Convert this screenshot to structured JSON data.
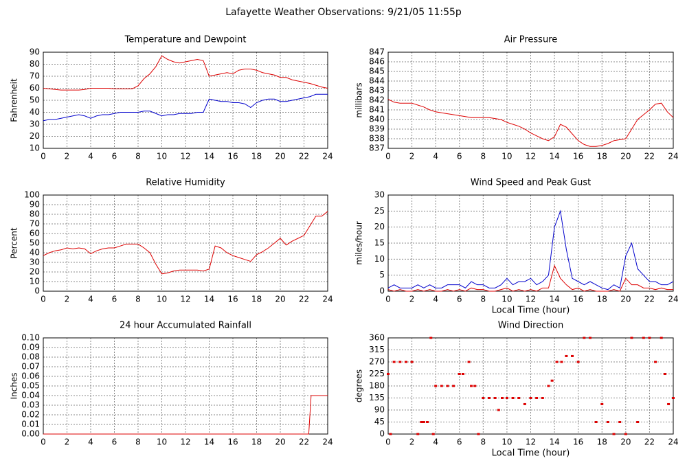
{
  "title": "Lafayette Weather Observations: 9/21/05 11:55p",
  "chart_data": [
    {
      "type": "line",
      "title": "Temperature and Dewpoint",
      "ylabel": "Fahrenheit",
      "grid": true,
      "xlim": [
        0,
        24
      ],
      "xticks": [
        0,
        2,
        4,
        6,
        8,
        10,
        12,
        14,
        16,
        18,
        20,
        22,
        24
      ],
      "ylim": [
        10,
        90
      ],
      "yticks": [
        10,
        20,
        30,
        40,
        50,
        60,
        70,
        80,
        90
      ],
      "x": [
        0,
        0.5,
        1,
        1.5,
        2,
        2.5,
        3,
        3.5,
        4,
        4.5,
        5,
        5.5,
        6,
        6.5,
        7,
        7.5,
        8,
        8.5,
        9,
        9.5,
        10,
        10.5,
        11,
        11.5,
        12,
        12.5,
        13,
        13.5,
        14,
        14.5,
        15,
        15.5,
        16,
        16.5,
        17,
        17.5,
        18,
        18.5,
        19,
        19.5,
        20,
        20.5,
        21,
        21.5,
        22,
        22.5,
        23,
        23.5,
        24
      ],
      "series": [
        {
          "color": "#dd0000",
          "values": [
            60,
            59.5,
            59,
            58.5,
            58.5,
            58.5,
            58.5,
            59,
            60,
            60,
            60,
            60,
            59.5,
            59.5,
            59.5,
            59.5,
            62,
            68,
            72,
            78,
            87,
            84,
            82,
            81,
            82,
            83,
            84,
            83,
            70,
            71,
            72,
            73,
            72,
            75,
            76,
            76,
            75,
            73,
            72,
            71,
            69,
            69,
            67,
            66,
            65,
            64,
            62.5,
            61,
            60
          ]
        },
        {
          "color": "#0000cc",
          "values": [
            33,
            34,
            34,
            35,
            36,
            37,
            38,
            37,
            35,
            37,
            38,
            38,
            39,
            40,
            40,
            40,
            40,
            41,
            41,
            39,
            37,
            38,
            38,
            39,
            39,
            39,
            40,
            40,
            51,
            50,
            49,
            49,
            48,
            48,
            47,
            44,
            48,
            50,
            51,
            51,
            49,
            49,
            50,
            51,
            52,
            53,
            55,
            55,
            55
          ]
        }
      ]
    },
    {
      "type": "line",
      "title": "Air Pressure",
      "ylabel": "millibars",
      "grid": true,
      "xlim": [
        0,
        24
      ],
      "xticks": [
        0,
        2,
        4,
        6,
        8,
        10,
        12,
        14,
        16,
        18,
        20,
        22,
        24
      ],
      "ylim": [
        837,
        847
      ],
      "yticks": [
        837,
        838,
        839,
        840,
        841,
        842,
        843,
        844,
        845,
        846,
        847
      ],
      "x": [
        0,
        0.5,
        1,
        1.5,
        2,
        2.5,
        3,
        3.5,
        4,
        4.5,
        5,
        5.5,
        6,
        6.5,
        7,
        7.5,
        8,
        8.5,
        9,
        9.5,
        10,
        10.5,
        11,
        11.5,
        12,
        12.5,
        13,
        13.5,
        14,
        14.5,
        15,
        15.5,
        16,
        16.5,
        17,
        17.5,
        18,
        18.5,
        19,
        19.5,
        20,
        20.5,
        21,
        21.5,
        22,
        22.5,
        23,
        23.5,
        24
      ],
      "series": [
        {
          "color": "#dd0000",
          "values": [
            842.1,
            841.8,
            841.7,
            841.7,
            841.7,
            841.5,
            841.3,
            841.0,
            840.8,
            840.7,
            840.6,
            840.5,
            840.4,
            840.3,
            840.2,
            840.2,
            840.2,
            840.2,
            840.1,
            840.0,
            839.7,
            839.5,
            839.3,
            839.0,
            838.6,
            838.3,
            838.0,
            837.8,
            838.2,
            839.5,
            839.2,
            838.5,
            837.8,
            837.4,
            837.2,
            837.2,
            837.3,
            837.5,
            837.8,
            837.9,
            838.0,
            839.0,
            840.0,
            840.5,
            841.0,
            841.6,
            841.7,
            840.8,
            840.2
          ]
        }
      ]
    },
    {
      "type": "line",
      "title": "Relative Humidity",
      "ylabel": "Percent",
      "grid": true,
      "xlim": [
        0,
        24
      ],
      "xticks": [
        0,
        2,
        4,
        6,
        8,
        10,
        12,
        14,
        16,
        18,
        20,
        22,
        24
      ],
      "ylim": [
        0,
        100
      ],
      "yticks": [
        0,
        10,
        20,
        30,
        40,
        50,
        60,
        70,
        80,
        90,
        100
      ],
      "x": [
        0,
        0.5,
        1,
        1.5,
        2,
        2.5,
        3,
        3.5,
        4,
        4.5,
        5,
        5.5,
        6,
        6.5,
        7,
        7.5,
        8,
        8.5,
        9,
        9.5,
        10,
        10.5,
        11,
        11.5,
        12,
        12.5,
        13,
        13.5,
        14,
        14.5,
        15,
        15.5,
        16,
        16.5,
        17,
        17.5,
        18,
        18.5,
        19,
        19.5,
        20,
        20.5,
        21,
        21.5,
        22,
        22.5,
        23,
        23.5,
        24
      ],
      "series": [
        {
          "color": "#dd0000",
          "values": [
            37,
            40,
            42,
            43,
            45,
            44,
            45,
            44,
            39,
            42,
            44,
            45,
            45,
            47,
            49,
            49,
            49,
            45,
            40,
            28,
            18,
            19,
            21,
            22,
            22,
            22,
            22,
            21,
            23,
            47,
            45,
            40,
            37,
            35,
            33,
            31,
            38,
            41,
            45,
            50,
            55,
            48,
            52,
            55,
            58,
            68,
            78,
            78,
            83
          ]
        }
      ]
    },
    {
      "type": "line",
      "title": "Wind Speed and Peak Gust",
      "ylabel": "miles/hour",
      "xlabel": "Local Time (hour)",
      "grid": true,
      "xlim": [
        0,
        24
      ],
      "xticks": [
        0,
        2,
        4,
        6,
        8,
        10,
        12,
        14,
        16,
        18,
        20,
        22,
        24
      ],
      "ylim": [
        0,
        30
      ],
      "yticks": [
        0,
        5,
        10,
        15,
        20,
        25,
        30
      ],
      "x": [
        0,
        0.5,
        1,
        1.5,
        2,
        2.5,
        3,
        3.5,
        4,
        4.5,
        5,
        5.5,
        6,
        6.5,
        7,
        7.5,
        8,
        8.5,
        9,
        9.5,
        10,
        10.5,
        11,
        11.5,
        12,
        12.5,
        13,
        13.5,
        14,
        14.5,
        15,
        15.5,
        16,
        16.5,
        17,
        17.5,
        18,
        18.5,
        19,
        19.5,
        20,
        20.5,
        21,
        21.5,
        22,
        22.5,
        23,
        23.5,
        24
      ],
      "series": [
        {
          "color": "#0000cc",
          "values": [
            1,
            2,
            1,
            1,
            1,
            2,
            1,
            2,
            1,
            1,
            2,
            2,
            2,
            1,
            3,
            2,
            2,
            1,
            1,
            2,
            4,
            2,
            3,
            3,
            4,
            2,
            3,
            5,
            20,
            25,
            13,
            4,
            3,
            2,
            3,
            2,
            1,
            0.5,
            2,
            1,
            11,
            15,
            7,
            5,
            3,
            3,
            2,
            2,
            3
          ]
        },
        {
          "color": "#dd0000",
          "values": [
            0.5,
            0,
            0.5,
            0,
            0,
            0.5,
            0,
            0.5,
            0,
            0,
            0.5,
            0,
            0.5,
            0,
            1,
            0.5,
            0.5,
            0,
            0,
            0.5,
            1,
            0,
            0.5,
            0,
            0.5,
            0,
            1,
            1,
            8,
            4,
            2,
            0.5,
            1,
            0,
            0.5,
            0,
            0,
            0,
            0.5,
            0,
            4,
            2,
            2,
            1,
            1,
            0.5,
            1,
            0.5,
            0.5
          ]
        }
      ]
    },
    {
      "type": "line",
      "title": "24 hour Accumulated Rainfall",
      "ylabel": "Inches",
      "grid": true,
      "xlim": [
        0,
        24
      ],
      "xticks": [
        0,
        2,
        4,
        6,
        8,
        10,
        12,
        14,
        16,
        18,
        20,
        22,
        24
      ],
      "ylim": [
        0,
        0.1
      ],
      "yticks": [
        {
          "value": 0,
          "label": "0.00"
        },
        0.01,
        0.02,
        0.03,
        0.04,
        0.05,
        0.06,
        0.07,
        0.08,
        0.09,
        {
          "value": 0.1,
          "label": "0.10"
        }
      ],
      "x": [
        0,
        22.4,
        22.6,
        24
      ],
      "series": [
        {
          "color": "#dd0000",
          "values": [
            0,
            0,
            0.04,
            0.04
          ]
        }
      ]
    },
    {
      "type": "scatter",
      "title": "Wind Direction",
      "ylabel": "degrees",
      "xlabel": "Local Time (hour)",
      "grid": true,
      "xlim": [
        0,
        24
      ],
      "xticks": [
        0,
        2,
        4,
        6,
        8,
        10,
        12,
        14,
        16,
        18,
        20,
        22,
        24
      ],
      "ylim": [
        0,
        360
      ],
      "yticks": [
        0,
        45,
        90,
        135,
        180,
        225,
        270,
        315,
        360
      ],
      "x": [
        0,
        0.2,
        0.5,
        1,
        1.5,
        2,
        2.5,
        2.8,
        3,
        3.3,
        3.6,
        3.8,
        4,
        4.5,
        5,
        5.5,
        6,
        6.3,
        6.8,
        7,
        7.3,
        7.6,
        8,
        8.5,
        9,
        9.3,
        9.6,
        10,
        10.5,
        11,
        11.5,
        12,
        12.5,
        13,
        13.5,
        13.8,
        14.2,
        14.6,
        15,
        15.5,
        16,
        16.5,
        17,
        17.5,
        18,
        18.5,
        19,
        19.5,
        20,
        20.5,
        21,
        21.5,
        22,
        22.5,
        23,
        23.3,
        23.6,
        24
      ],
      "series": [
        {
          "color": "#dd0000",
          "values": [
            225,
            0,
            270,
            270,
            270,
            270,
            0,
            45,
            45,
            45,
            360,
            0,
            180,
            180,
            180,
            180,
            225,
            225,
            270,
            180,
            180,
            0,
            135,
            135,
            135,
            90,
            135,
            135,
            135,
            135,
            112,
            135,
            135,
            135,
            180,
            200,
            270,
            270,
            292,
            292,
            270,
            360,
            360,
            45,
            112,
            45,
            0,
            45,
            0,
            360,
            45,
            360,
            360,
            270,
            360,
            225,
            112,
            135
          ]
        }
      ]
    }
  ]
}
